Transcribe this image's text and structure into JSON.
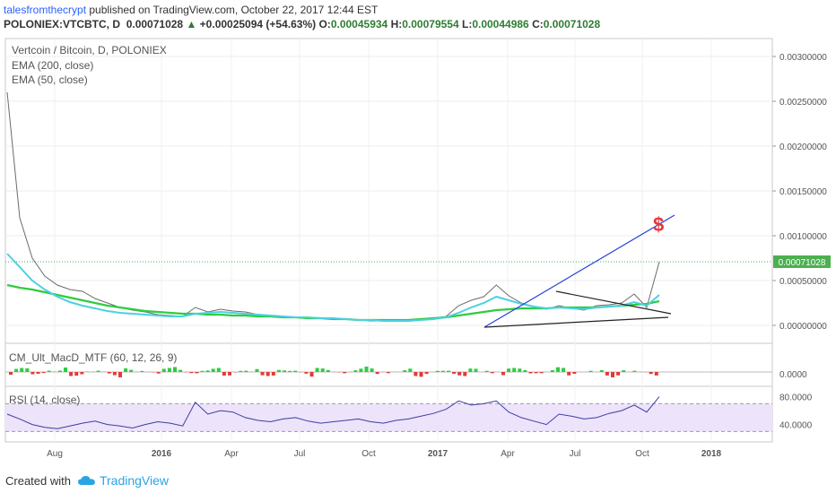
{
  "header": {
    "author": "talesfromthecrypt",
    "published": " published on TradingView.com, October 22, 2017 12:44 EST",
    "symbol": "POLONIEX:VTCBTC, D",
    "last": "0.00071028",
    "arrow": "▲",
    "change": "+0.00025094 (+54.63%)",
    "open_label": "O:",
    "open": "0.00045934",
    "high_label": "H:",
    "high": "0.00079554",
    "low_label": "L:",
    "low": "0.00044986",
    "close_label": "C:",
    "close": "0.00071028"
  },
  "legend": {
    "title": "Vertcoin / Bitcoin, D, POLONIEX",
    "ema200": "EMA (200, close)",
    "ema50": "EMA (50, close)"
  },
  "annotations": {
    "dollar": "$"
  },
  "macd": {
    "label": "CM_Ult_MacD_MTF (60, 12, 26, 9)",
    "zero_tick": "0.0000"
  },
  "rsi": {
    "label": "RSI (14, close)",
    "ticks": [
      "80.0000",
      "40.0000"
    ],
    "band": [
      30,
      70
    ]
  },
  "footer": {
    "created_with": "Created with",
    "brand": "TradingView"
  },
  "colors": {
    "price": "#6b6b6b",
    "ema200": "#2ecc40",
    "ema50": "#4dd0e1",
    "trend_up": "#2541d9",
    "dollar": "#e53935",
    "rsi_line": "#3d3d9e",
    "rsi_band": "#ede3fb",
    "macd_up": "#2ecc40",
    "macd_down": "#e53935",
    "last_price_badge": "#4caf50"
  },
  "chart_data": {
    "type": "line",
    "title": "Vertcoin / Bitcoin, D, POLONIEX",
    "ylim": [
      -0.0002,
      0.0032
    ],
    "y_ticks": [
      "0.00300000",
      "0.00250000",
      "0.00200000",
      "0.00150000",
      "0.00100000",
      "0.00050000",
      "0.00000000"
    ],
    "y_tick_values": [
      0.003,
      0.0025,
      0.002,
      0.0015,
      0.001,
      0.0005,
      0.0
    ],
    "last_price": "0.00071028",
    "last_price_value": 0.00071028,
    "x_ticks": [
      "Aug",
      "2016",
      "Apr",
      "Jul",
      "Oct",
      "2017",
      "Apr",
      "Jul",
      "Oct",
      "2018"
    ],
    "series": [
      {
        "name": "price",
        "values": [
          0.0026,
          0.0012,
          0.00075,
          0.00055,
          0.00045,
          0.0004,
          0.00038,
          0.0003,
          0.00025,
          0.0002,
          0.00017,
          0.00015,
          0.00012,
          0.00011,
          0.0001,
          0.0002,
          0.00015,
          0.00018,
          0.00016,
          0.00015,
          0.00012,
          0.00011,
          0.0001,
          9e-05,
          9e-05,
          8e-05,
          8e-05,
          7e-05,
          6e-05,
          5e-05,
          5e-05,
          5e-05,
          6e-05,
          6e-05,
          8e-05,
          0.0001,
          0.00022,
          0.00028,
          0.00032,
          0.00045,
          0.00033,
          0.00025,
          0.00021,
          0.00018,
          0.00022,
          0.00019,
          0.00017,
          0.00022,
          0.00023,
          0.00025,
          0.00035,
          0.0002,
          0.00071
        ]
      },
      {
        "name": "EMA (200, close)",
        "values": [
          0.00045,
          0.00042,
          0.0004,
          0.00037,
          0.00034,
          0.00031,
          0.00028,
          0.00025,
          0.00022,
          0.0002,
          0.00018,
          0.00016,
          0.00015,
          0.00014,
          0.00013,
          0.00013,
          0.00012,
          0.00012,
          0.00011,
          0.00011,
          0.0001,
          0.0001,
          9e-05,
          9e-05,
          8e-05,
          8e-05,
          7e-05,
          7e-05,
          6e-05,
          6e-05,
          6e-05,
          6e-05,
          6e-05,
          7e-05,
          8e-05,
          9e-05,
          0.00011,
          0.00013,
          0.00015,
          0.00017,
          0.00018,
          0.00019,
          0.00019,
          0.00019,
          0.0002,
          0.0002,
          0.0002,
          0.0002,
          0.00021,
          0.00022,
          0.00023,
          0.00024,
          0.00027
        ]
      },
      {
        "name": "EMA (50, close)",
        "values": [
          0.0008,
          0.00065,
          0.0005,
          0.0004,
          0.00032,
          0.00026,
          0.00022,
          0.00019,
          0.00016,
          0.00014,
          0.00013,
          0.00012,
          0.00011,
          0.0001,
          0.0001,
          0.00013,
          0.00014,
          0.00015,
          0.00014,
          0.00013,
          0.00012,
          0.00011,
          0.0001,
          9e-05,
          9e-05,
          8e-05,
          8e-05,
          7e-05,
          6e-05,
          6e-05,
          5e-05,
          5e-05,
          5e-05,
          6e-05,
          7e-05,
          9e-05,
          0.00014,
          0.0002,
          0.00025,
          0.00032,
          0.00028,
          0.00024,
          0.00021,
          0.00019,
          0.0002,
          0.00019,
          0.00018,
          0.0002,
          0.00021,
          0.00022,
          0.00026,
          0.00022,
          0.00034
        ]
      }
    ],
    "rsi_values": [
      55,
      48,
      40,
      36,
      34,
      38,
      42,
      45,
      40,
      38,
      35,
      40,
      44,
      42,
      38,
      72,
      55,
      60,
      58,
      50,
      46,
      44,
      48,
      50,
      45,
      42,
      44,
      46,
      48,
      44,
      42,
      46,
      48,
      52,
      56,
      62,
      74,
      68,
      70,
      74,
      58,
      50,
      45,
      40,
      55,
      52,
      48,
      50,
      56,
      60,
      68,
      58,
      80
    ]
  }
}
